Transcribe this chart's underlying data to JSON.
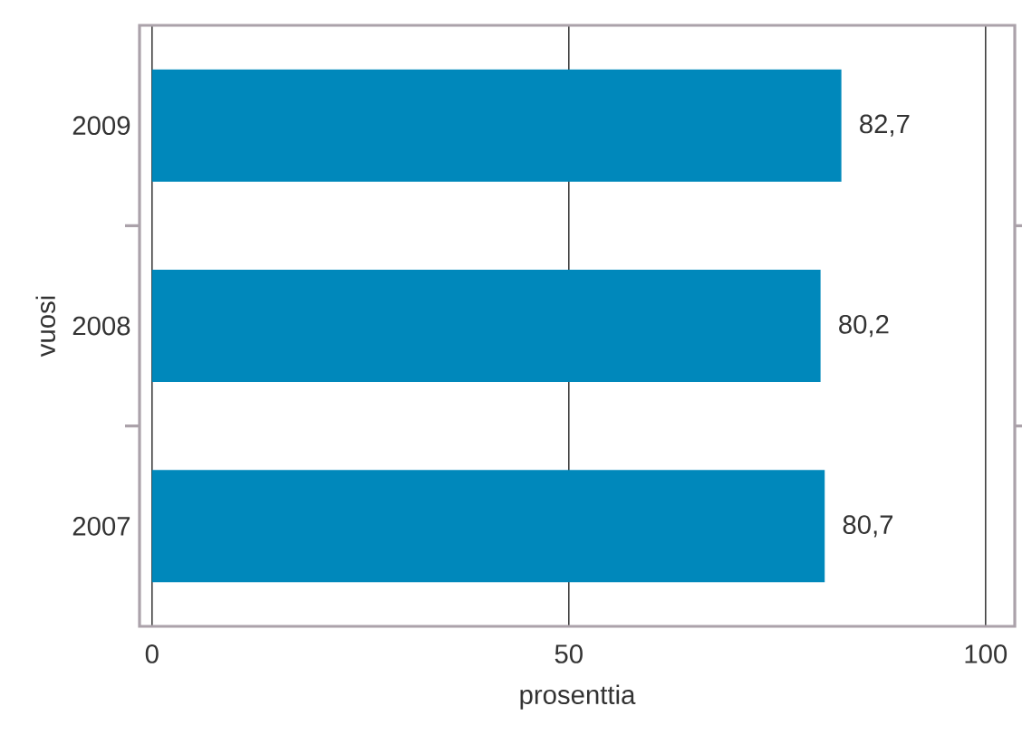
{
  "chart_data": {
    "type": "bar",
    "orientation": "horizontal",
    "xlabel": "prosenttia",
    "ylabel": "vuosi",
    "categories": [
      "2009",
      "2008",
      "2007"
    ],
    "values": [
      82.7,
      80.2,
      80.7
    ],
    "value_labels": [
      "82,7",
      "80,2",
      "80,7"
    ],
    "color": "#0088bb",
    "xlim": [
      -1.5,
      103.5
    ],
    "xticks": [
      0,
      50,
      100
    ],
    "grid": "x"
  }
}
